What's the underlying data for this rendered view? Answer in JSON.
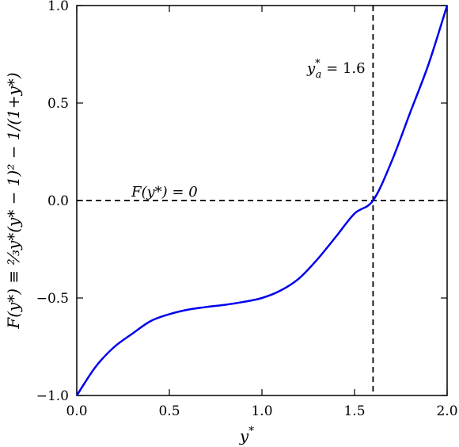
{
  "chart_data": {
    "type": "line",
    "title": "",
    "xlabel": "y*",
    "ylabel": "F(y*) ≡ ⅔y*(y* − 1)² − 1/(1+y*)",
    "xlim": [
      0.0,
      2.0
    ],
    "ylim": [
      -1.0,
      1.0
    ],
    "xticks": [
      "0.0",
      "0.5",
      "1.0",
      "1.5",
      "2.0"
    ],
    "yticks": [
      "−1.0",
      "−0.5",
      "0.0",
      "0.5",
      "1.0"
    ],
    "grid": false,
    "series": [
      {
        "color": "#0000ee",
        "x": [
          0.0,
          0.1,
          0.2,
          0.3,
          0.4,
          0.5,
          0.6,
          0.7,
          0.8,
          0.9,
          1.0,
          1.1,
          1.2,
          1.3,
          1.4,
          1.5,
          1.6,
          1.7,
          1.8,
          1.9,
          2.0
        ],
        "y": [
          -1.0,
          -0.855,
          -0.753,
          -0.683,
          -0.618,
          -0.583,
          -0.56,
          -0.546,
          -0.535,
          -0.52,
          -0.5,
          -0.462,
          -0.4,
          -0.301,
          -0.185,
          -0.067,
          0.0,
          0.2,
          0.45,
          0.7,
          1.0
        ]
      }
    ],
    "reference_lines": [
      {
        "orientation": "vertical",
        "x": 1.6,
        "style": "dashed",
        "label": "y*a = 1.6"
      },
      {
        "orientation": "horizontal",
        "y": 0.0,
        "style": "dashed",
        "label": "F(y*) = 0"
      }
    ]
  },
  "annotations": {
    "vline_label_main": "y",
    "vline_label_sup": "*",
    "vline_label_sub": "a",
    "vline_label_rest": " = 1.6",
    "hline_label": "F(y*) = 0",
    "xlabel_main": "y",
    "xlabel_sup": "*"
  }
}
